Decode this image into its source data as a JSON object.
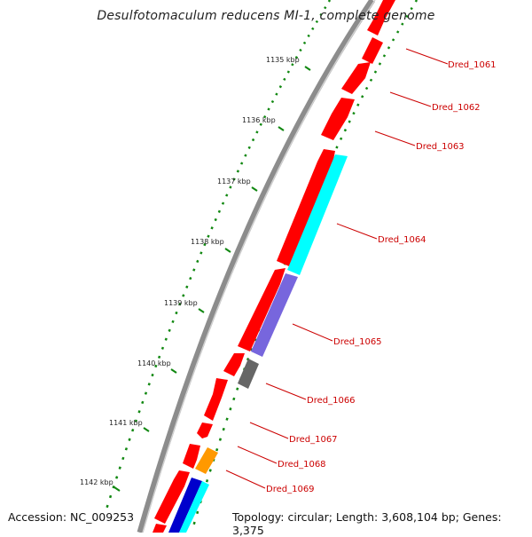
{
  "title": "Desulfotomaculum reducens MI-1, complete genome",
  "footer": {
    "accession": "Accession: NC_009253",
    "summary": "Topology: circular; Length: 3,608,104 bp; Genes: 3,375"
  },
  "ticks": [
    {
      "label": "1135 kbp"
    },
    {
      "label": "1136 kbp"
    },
    {
      "label": "1137 kbp"
    },
    {
      "label": "1138 kbp"
    },
    {
      "label": "1139 kbp"
    },
    {
      "label": "1140 kbp"
    },
    {
      "label": "1141 kbp"
    },
    {
      "label": "1142 kbp"
    }
  ],
  "genes": [
    {
      "name": "Dred_1061"
    },
    {
      "name": "Dred_1062"
    },
    {
      "name": "Dred_1063"
    },
    {
      "name": "Dred_1064"
    },
    {
      "name": "Dred_1065"
    },
    {
      "name": "Dred_1066"
    },
    {
      "name": "Dred_1067"
    },
    {
      "name": "Dred_1068"
    },
    {
      "name": "Dred_1069"
    }
  ],
  "colors": {
    "backbone": "#8c8c8c",
    "gene": "#ff0000",
    "cyan_feature": "#00ffff",
    "purple_feature": "#7766dd",
    "gray_feature": "#666666",
    "orange_feature": "#ff9900",
    "blue_feature": "#0000cc",
    "tick_marks": "#118811",
    "label_text": "#cc0000"
  }
}
